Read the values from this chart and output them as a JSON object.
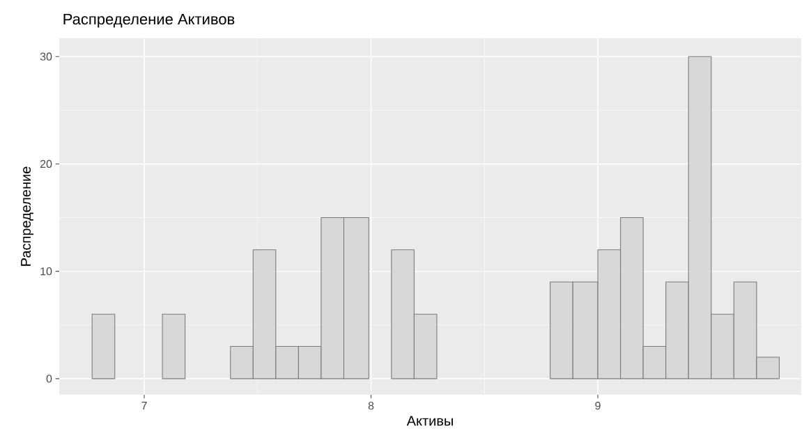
{
  "chart_data": {
    "type": "histogram",
    "title": "Распределение Активов",
    "xlabel": "Активы",
    "ylabel": "Распределение",
    "bins": [
      6.77,
      6.87,
      7.08,
      7.18,
      7.38,
      7.48,
      7.58,
      7.68,
      7.78,
      7.88,
      7.99,
      8.09,
      8.19,
      8.29,
      8.79,
      8.89,
      9.0,
      9.1,
      9.2,
      9.3,
      9.4,
      9.5,
      9.6,
      9.7,
      9.8
    ],
    "values": [
      6,
      0,
      6,
      0,
      3,
      12,
      3,
      3,
      15,
      15,
      0,
      12,
      6,
      0,
      9,
      9,
      12,
      15,
      3,
      9,
      30,
      6,
      9,
      2
    ],
    "color": "#d6d6d6",
    "xlim": [
      6.625,
      9.897
    ],
    "ylim": [
      -1.5,
      31.7
    ],
    "xticks": [
      7,
      8,
      9
    ],
    "yticks": [
      0,
      10,
      20,
      30
    ],
    "grid": true
  }
}
